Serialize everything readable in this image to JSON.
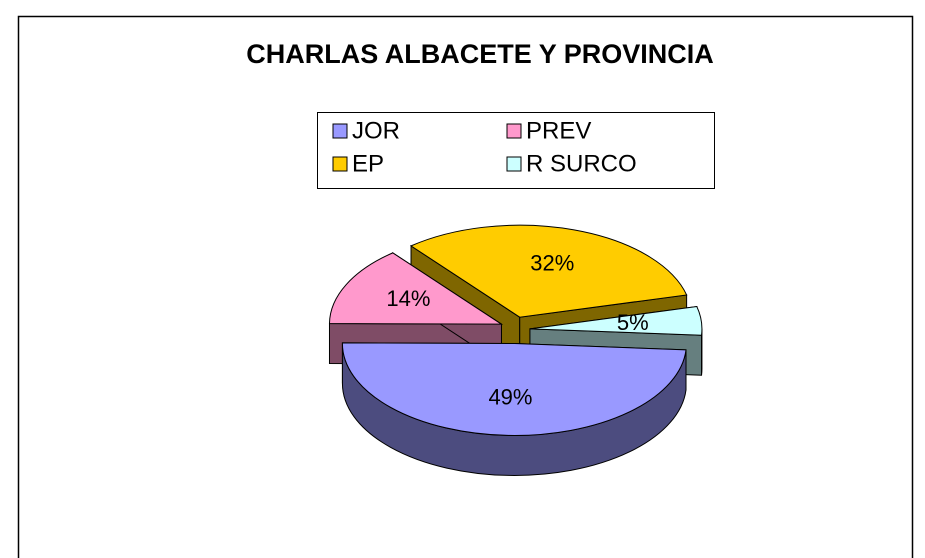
{
  "chart_data": {
    "type": "pie3d",
    "title": "CHARLAS ALBACETE Y PROVINCIA",
    "categories": [
      "JOR",
      "PREV",
      "EP",
      "R SURCO"
    ],
    "values": [
      49,
      14,
      32,
      5
    ],
    "value_labels": [
      "49%",
      "14%",
      "32%",
      "5%"
    ],
    "colors": [
      "#9999ff",
      "#ff99cc",
      "#ffcc00",
      "#ccffff"
    ],
    "legend": "top",
    "exploded": true
  }
}
